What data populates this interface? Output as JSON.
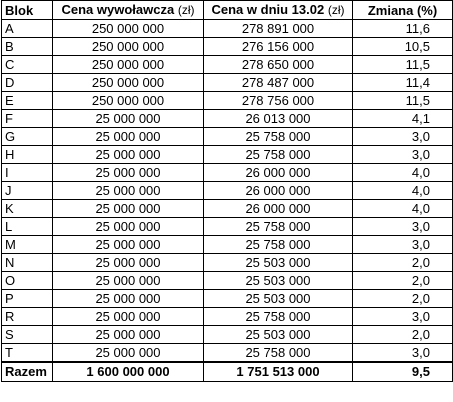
{
  "table": {
    "headers": {
      "blok": "Blok",
      "wywolawcza": "Cena wywoławcza",
      "wywolawcza_unit": "(zł)",
      "w_dniu": "Cena w dniu 13.02",
      "w_dniu_unit": "(zł)",
      "zmiana": "Zmiana (%)"
    },
    "rows": [
      {
        "blok": "A",
        "wywolawcza": "250 000 000",
        "w_dniu": "278 891 000",
        "zmiana": "11,6"
      },
      {
        "blok": "B",
        "wywolawcza": "250 000 000",
        "w_dniu": "276 156 000",
        "zmiana": "10,5"
      },
      {
        "blok": "C",
        "wywolawcza": "250 000 000",
        "w_dniu": "278 650 000",
        "zmiana": "11,5"
      },
      {
        "blok": "D",
        "wywolawcza": "250 000 000",
        "w_dniu": "278 487 000",
        "zmiana": "11,4"
      },
      {
        "blok": "E",
        "wywolawcza": "250 000 000",
        "w_dniu": "278 756 000",
        "zmiana": "11,5"
      },
      {
        "blok": "F",
        "wywolawcza": "25 000 000",
        "w_dniu": "26 013 000",
        "zmiana": "4,1"
      },
      {
        "blok": "G",
        "wywolawcza": "25 000 000",
        "w_dniu": "25 758 000",
        "zmiana": "3,0"
      },
      {
        "blok": "H",
        "wywolawcza": "25 000 000",
        "w_dniu": "25 758 000",
        "zmiana": "3,0"
      },
      {
        "blok": "I",
        "wywolawcza": "25 000 000",
        "w_dniu": "26 000 000",
        "zmiana": "4,0"
      },
      {
        "blok": "J",
        "wywolawcza": "25 000 000",
        "w_dniu": "26 000 000",
        "zmiana": "4,0"
      },
      {
        "blok": "K",
        "wywolawcza": "25 000 000",
        "w_dniu": "26 000 000",
        "zmiana": "4,0"
      },
      {
        "blok": "L",
        "wywolawcza": "25 000 000",
        "w_dniu": "25 758 000",
        "zmiana": "3,0"
      },
      {
        "blok": "M",
        "wywolawcza": "25 000 000",
        "w_dniu": "25 758 000",
        "zmiana": "3,0"
      },
      {
        "blok": "N",
        "wywolawcza": "25 000 000",
        "w_dniu": "25 503 000",
        "zmiana": "2,0"
      },
      {
        "blok": "O",
        "wywolawcza": "25 000 000",
        "w_dniu": "25 503 000",
        "zmiana": "2,0"
      },
      {
        "blok": "P",
        "wywolawcza": "25 000 000",
        "w_dniu": "25 503 000",
        "zmiana": "2,0"
      },
      {
        "blok": "R",
        "wywolawcza": "25 000 000",
        "w_dniu": "25 758 000",
        "zmiana": "3,0"
      },
      {
        "blok": "S",
        "wywolawcza": "25 000 000",
        "w_dniu": "25 503 000",
        "zmiana": "2,0"
      },
      {
        "blok": "T",
        "wywolawcza": "25 000 000",
        "w_dniu": "25 758 000",
        "zmiana": "3,0"
      }
    ],
    "total": {
      "blok": "Razem",
      "wywolawcza": "1 600 000 000",
      "w_dniu": "1 751 513 000",
      "zmiana": "9,5"
    }
  }
}
